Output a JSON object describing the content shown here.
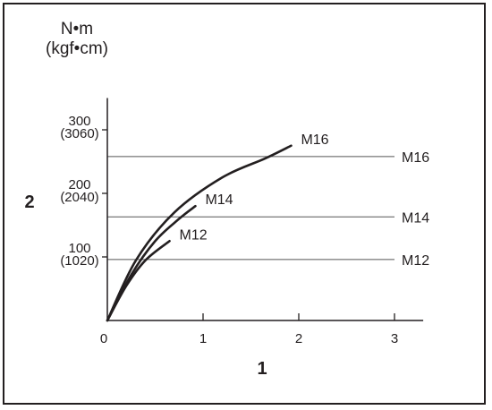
{
  "chart_data": {
    "type": "line",
    "y_unit_line1": "N•m",
    "y_unit_line2": "(kgf•cm)",
    "y_axis_label": "2",
    "x_axis_label": "1",
    "x_ticks": [
      {
        "value": 0,
        "label": "0"
      },
      {
        "value": 1,
        "label": "1"
      },
      {
        "value": 2,
        "label": "2"
      },
      {
        "value": 3,
        "label": "3"
      }
    ],
    "y_ticks": [
      {
        "value": 100,
        "label": "100",
        "sublabel": "(1020)"
      },
      {
        "value": 200,
        "label": "200",
        "sublabel": "(2040)"
      },
      {
        "value": 300,
        "label": "300",
        "sublabel": "(3060)"
      }
    ],
    "xlim": [
      0,
      3.3
    ],
    "ylim": [
      0,
      350
    ],
    "series": [
      {
        "name": "M12",
        "x": [
          0,
          0.2,
          0.4,
          0.65
        ],
        "y": [
          0,
          55,
          95,
          125
        ]
      },
      {
        "name": "M14",
        "x": [
          0,
          0.25,
          0.5,
          0.75,
          0.92
        ],
        "y": [
          0,
          72,
          125,
          160,
          180
        ]
      },
      {
        "name": "M16",
        "x": [
          0,
          0.3,
          0.7,
          1.2,
          1.65,
          1.92
        ],
        "y": [
          0,
          95,
          170,
          225,
          255,
          275
        ]
      }
    ],
    "reference_lines": [
      {
        "name": "M16",
        "y": 258
      },
      {
        "name": "M14",
        "y": 163
      },
      {
        "name": "M12",
        "y": 96
      }
    ],
    "colors": {
      "ink": "#231f20"
    }
  }
}
